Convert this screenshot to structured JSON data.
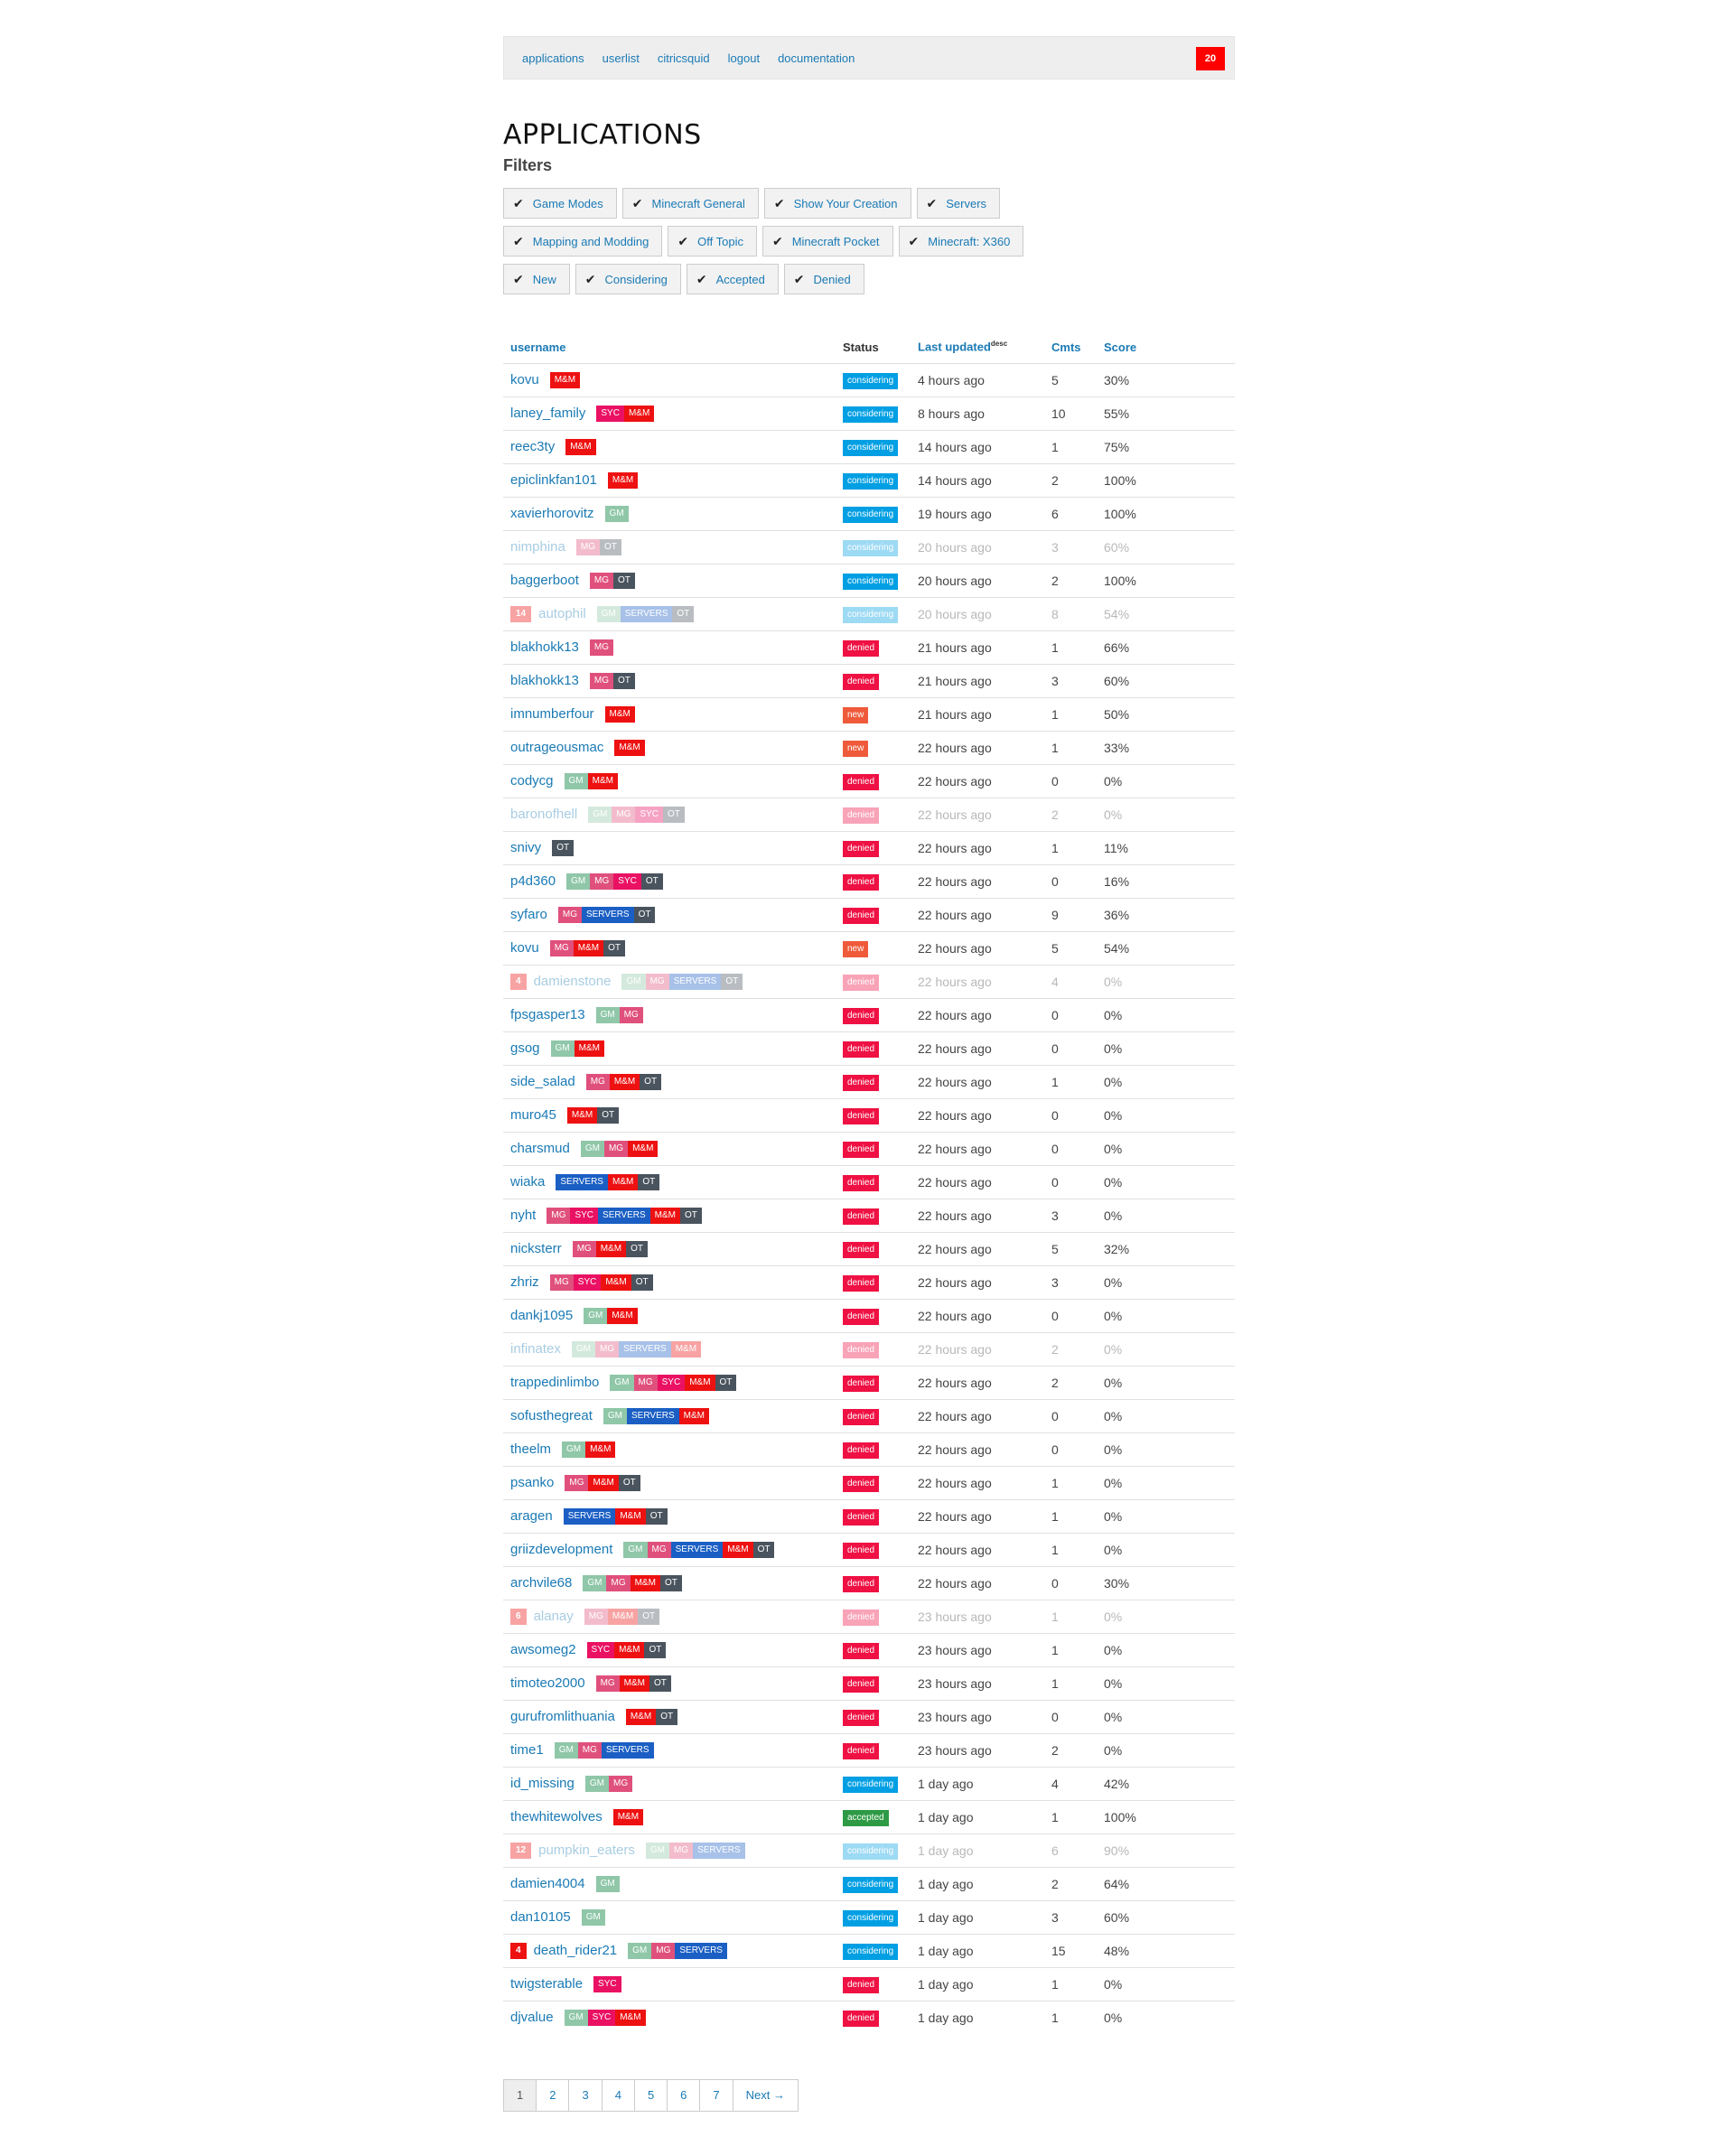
{
  "nav": {
    "links": [
      "applications",
      "userlist",
      "citricsquid",
      "logout",
      "documentation"
    ],
    "badge": "20"
  },
  "page": {
    "title": "APPLICATIONS",
    "filters_heading": "Filters"
  },
  "filters": [
    [
      "Game Modes",
      "Minecraft General",
      "Show Your Creation",
      "Servers"
    ],
    [
      "Mapping and Modding",
      "Off Topic",
      "Minecraft Pocket",
      "Minecraft: X360"
    ],
    [
      "New",
      "Considering",
      "Accepted",
      "Denied"
    ]
  ],
  "table": {
    "headers": {
      "username": "username",
      "status": "Status",
      "updated": "Last updated",
      "updated_sup": "desc",
      "cmts": "Cmts",
      "score": "Score"
    },
    "rows": [
      {
        "u": "kovu",
        "tags": [
          "M&M"
        ],
        "s": "considering",
        "t": "4 hours ago",
        "c": "5",
        "sc": "30%"
      },
      {
        "u": "laney_family",
        "tags": [
          "SYC",
          "M&M"
        ],
        "s": "considering",
        "t": "8 hours ago",
        "c": "10",
        "sc": "55%"
      },
      {
        "u": "reec3ty",
        "tags": [
          "M&M"
        ],
        "s": "considering",
        "t": "14 hours ago",
        "c": "1",
        "sc": "75%"
      },
      {
        "u": "epiclinkfan101",
        "tags": [
          "M&M"
        ],
        "s": "considering",
        "t": "14 hours ago",
        "c": "2",
        "sc": "100%"
      },
      {
        "u": "xavierhorovitz",
        "tags": [
          "GM"
        ],
        "s": "considering",
        "t": "19 hours ago",
        "c": "6",
        "sc": "100%"
      },
      {
        "u": "nimphina",
        "tags": [
          "MG",
          "OT"
        ],
        "s": "considering",
        "t": "20 hours ago",
        "c": "3",
        "sc": "60%",
        "faded": true
      },
      {
        "u": "baggerboot",
        "tags": [
          "MG",
          "OT"
        ],
        "s": "considering",
        "t": "20 hours ago",
        "c": "2",
        "sc": "100%"
      },
      {
        "u": "autophil",
        "count": "14",
        "tags": [
          "GM",
          "SERVERS",
          "OT"
        ],
        "s": "considering",
        "t": "20 hours ago",
        "c": "8",
        "sc": "54%",
        "faded": true
      },
      {
        "u": "blakhokk13",
        "tags": [
          "MG"
        ],
        "s": "denied",
        "t": "21 hours ago",
        "c": "1",
        "sc": "66%"
      },
      {
        "u": "blakhokk13",
        "tags": [
          "MG",
          "OT"
        ],
        "s": "denied",
        "t": "21 hours ago",
        "c": "3",
        "sc": "60%"
      },
      {
        "u": "imnumberfour",
        "tags": [
          "M&M"
        ],
        "s": "new",
        "t": "21 hours ago",
        "c": "1",
        "sc": "50%"
      },
      {
        "u": "outrageousmac",
        "tags": [
          "M&M"
        ],
        "s": "new",
        "t": "22 hours ago",
        "c": "1",
        "sc": "33%"
      },
      {
        "u": "codycg",
        "tags": [
          "GM",
          "M&M"
        ],
        "s": "denied",
        "t": "22 hours ago",
        "c": "0",
        "sc": "0%"
      },
      {
        "u": "baronofhell",
        "tags": [
          "GM",
          "MG",
          "SYC",
          "OT"
        ],
        "s": "denied",
        "t": "22 hours ago",
        "c": "2",
        "sc": "0%",
        "faded": true
      },
      {
        "u": "snivy",
        "tags": [
          "OT"
        ],
        "s": "denied",
        "t": "22 hours ago",
        "c": "1",
        "sc": "11%"
      },
      {
        "u": "p4d360",
        "tags": [
          "GM",
          "MG",
          "SYC",
          "OT"
        ],
        "s": "denied",
        "t": "22 hours ago",
        "c": "0",
        "sc": "16%"
      },
      {
        "u": "syfaro",
        "tags": [
          "MG",
          "SERVERS",
          "OT"
        ],
        "s": "denied",
        "t": "22 hours ago",
        "c": "9",
        "sc": "36%"
      },
      {
        "u": "kovu",
        "tags": [
          "MG",
          "M&M",
          "OT"
        ],
        "s": "new",
        "t": "22 hours ago",
        "c": "5",
        "sc": "54%"
      },
      {
        "u": "damienstone",
        "count": "4",
        "tags": [
          "GM",
          "MG",
          "SERVERS",
          "OT"
        ],
        "s": "denied",
        "t": "22 hours ago",
        "c": "4",
        "sc": "0%",
        "faded": true
      },
      {
        "u": "fpsgasper13",
        "tags": [
          "GM",
          "MG"
        ],
        "s": "denied",
        "t": "22 hours ago",
        "c": "0",
        "sc": "0%"
      },
      {
        "u": "gsog",
        "tags": [
          "GM",
          "M&M"
        ],
        "s": "denied",
        "t": "22 hours ago",
        "c": "0",
        "sc": "0%"
      },
      {
        "u": "side_salad",
        "tags": [
          "MG",
          "M&M",
          "OT"
        ],
        "s": "denied",
        "t": "22 hours ago",
        "c": "1",
        "sc": "0%"
      },
      {
        "u": "muro45",
        "tags": [
          "M&M",
          "OT"
        ],
        "s": "denied",
        "t": "22 hours ago",
        "c": "0",
        "sc": "0%"
      },
      {
        "u": "charsmud",
        "tags": [
          "GM",
          "MG",
          "M&M"
        ],
        "s": "denied",
        "t": "22 hours ago",
        "c": "0",
        "sc": "0%"
      },
      {
        "u": "wiaka",
        "tags": [
          "SERVERS",
          "M&M",
          "OT"
        ],
        "s": "denied",
        "t": "22 hours ago",
        "c": "0",
        "sc": "0%"
      },
      {
        "u": "nyht",
        "tags": [
          "MG",
          "SYC",
          "SERVERS",
          "M&M",
          "OT"
        ],
        "s": "denied",
        "t": "22 hours ago",
        "c": "3",
        "sc": "0%"
      },
      {
        "u": "nicksterr",
        "tags": [
          "MG",
          "M&M",
          "OT"
        ],
        "s": "denied",
        "t": "22 hours ago",
        "c": "5",
        "sc": "32%"
      },
      {
        "u": "zhriz",
        "tags": [
          "MG",
          "SYC",
          "M&M",
          "OT"
        ],
        "s": "denied",
        "t": "22 hours ago",
        "c": "3",
        "sc": "0%"
      },
      {
        "u": "dankj1095",
        "tags": [
          "GM",
          "M&M"
        ],
        "s": "denied",
        "t": "22 hours ago",
        "c": "0",
        "sc": "0%"
      },
      {
        "u": "infinatex",
        "tags": [
          "GM",
          "MG",
          "SERVERS",
          "M&M"
        ],
        "s": "denied",
        "t": "22 hours ago",
        "c": "2",
        "sc": "0%",
        "faded": true
      },
      {
        "u": "trappedinlimbo",
        "tags": [
          "GM",
          "MG",
          "SYC",
          "M&M",
          "OT"
        ],
        "s": "denied",
        "t": "22 hours ago",
        "c": "2",
        "sc": "0%"
      },
      {
        "u": "sofusthegreat",
        "tags": [
          "GM",
          "SERVERS",
          "M&M"
        ],
        "s": "denied",
        "t": "22 hours ago",
        "c": "0",
        "sc": "0%"
      },
      {
        "u": "theelm",
        "tags": [
          "GM",
          "M&M"
        ],
        "s": "denied",
        "t": "22 hours ago",
        "c": "0",
        "sc": "0%"
      },
      {
        "u": "psanko",
        "tags": [
          "MG",
          "M&M",
          "OT"
        ],
        "s": "denied",
        "t": "22 hours ago",
        "c": "1",
        "sc": "0%"
      },
      {
        "u": "aragen",
        "tags": [
          "SERVERS",
          "M&M",
          "OT"
        ],
        "s": "denied",
        "t": "22 hours ago",
        "c": "1",
        "sc": "0%"
      },
      {
        "u": "griizdevelopment",
        "tags": [
          "GM",
          "MG",
          "SERVERS",
          "M&M",
          "OT"
        ],
        "s": "denied",
        "t": "22 hours ago",
        "c": "1",
        "sc": "0%"
      },
      {
        "u": "archvile68",
        "tags": [
          "GM",
          "MG",
          "M&M",
          "OT"
        ],
        "s": "denied",
        "t": "22 hours ago",
        "c": "0",
        "sc": "30%"
      },
      {
        "u": "alanay",
        "count": "6",
        "tags": [
          "MG",
          "M&M",
          "OT"
        ],
        "s": "denied",
        "t": "23 hours ago",
        "c": "1",
        "sc": "0%",
        "faded": true
      },
      {
        "u": "awsomeg2",
        "tags": [
          "SYC",
          "M&M",
          "OT"
        ],
        "s": "denied",
        "t": "23 hours ago",
        "c": "1",
        "sc": "0%"
      },
      {
        "u": "timoteo2000",
        "tags": [
          "MG",
          "M&M",
          "OT"
        ],
        "s": "denied",
        "t": "23 hours ago",
        "c": "1",
        "sc": "0%"
      },
      {
        "u": "gurufromlithuania",
        "tags": [
          "M&M",
          "OT"
        ],
        "s": "denied",
        "t": "23 hours ago",
        "c": "0",
        "sc": "0%"
      },
      {
        "u": "time1",
        "tags": [
          "GM",
          "MG",
          "SERVERS"
        ],
        "s": "denied",
        "t": "23 hours ago",
        "c": "2",
        "sc": "0%"
      },
      {
        "u": "id_missing",
        "tags": [
          "GM",
          "MG"
        ],
        "s": "considering",
        "t": "1 day ago",
        "c": "4",
        "sc": "42%"
      },
      {
        "u": "thewhitewolves",
        "tags": [
          "M&M"
        ],
        "s": "accepted",
        "t": "1 day ago",
        "c": "1",
        "sc": "100%"
      },
      {
        "u": "pumpkin_eaters",
        "count": "12",
        "tags": [
          "GM",
          "MG",
          "SERVERS"
        ],
        "s": "considering",
        "t": "1 day ago",
        "c": "6",
        "sc": "90%",
        "faded": true
      },
      {
        "u": "damien4004",
        "tags": [
          "GM"
        ],
        "s": "considering",
        "t": "1 day ago",
        "c": "2",
        "sc": "64%"
      },
      {
        "u": "dan10105",
        "tags": [
          "GM"
        ],
        "s": "considering",
        "t": "1 day ago",
        "c": "3",
        "sc": "60%"
      },
      {
        "u": "death_rider21",
        "count": "4",
        "tags": [
          "GM",
          "MG",
          "SERVERS"
        ],
        "s": "considering",
        "t": "1 day ago",
        "c": "15",
        "sc": "48%"
      },
      {
        "u": "twigsterable",
        "tags": [
          "SYC"
        ],
        "s": "denied",
        "t": "1 day ago",
        "c": "1",
        "sc": "0%"
      },
      {
        "u": "djvalue",
        "tags": [
          "GM",
          "SYC",
          "M&M"
        ],
        "s": "denied",
        "t": "1 day ago",
        "c": "1",
        "sc": "0%"
      }
    ]
  },
  "pager": {
    "pages": [
      "1",
      "2",
      "3",
      "4",
      "5",
      "6",
      "7"
    ],
    "next": "Next →",
    "current": "1"
  },
  "icons": {
    "check": "check-icon"
  }
}
